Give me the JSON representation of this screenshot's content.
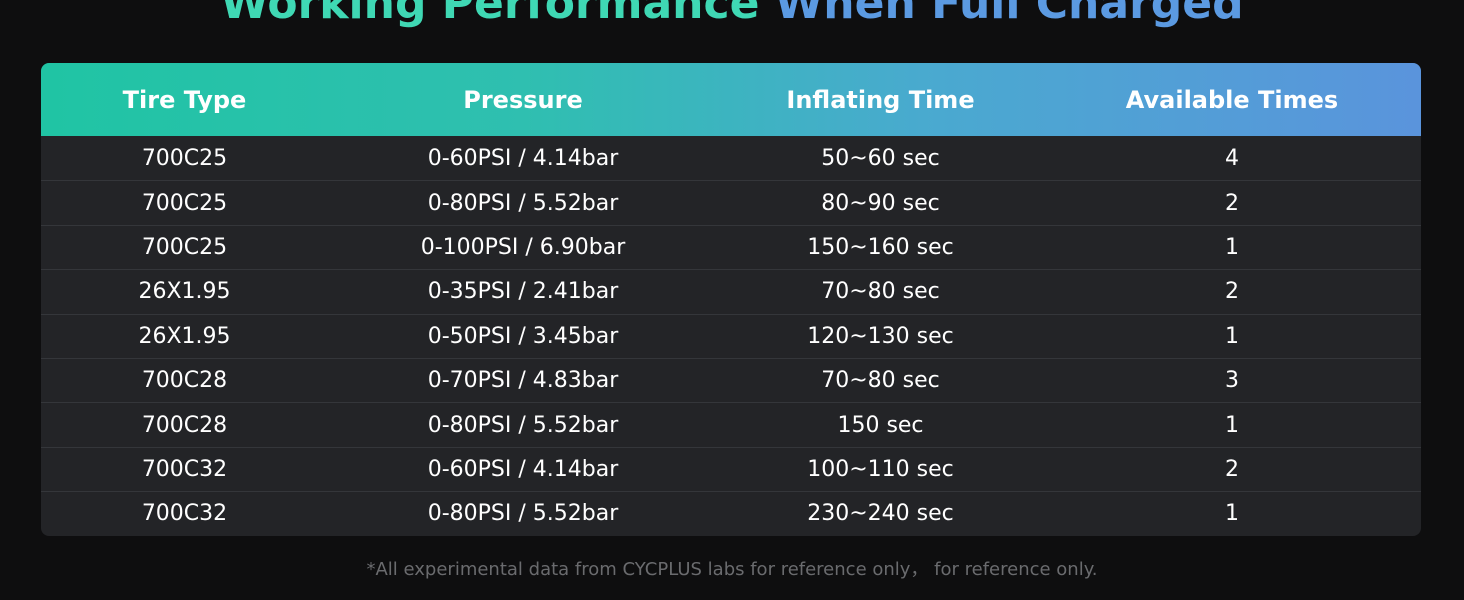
{
  "header": {
    "title_part1": "Working Performance",
    "title_part2": "When Full Charged"
  },
  "table": {
    "columns": [
      "Tire Type",
      "Pressure",
      "Inflating Time",
      "Available Times"
    ],
    "rows": [
      [
        "700C25",
        "0-60PSI / 4.14bar",
        "50~60 sec",
        4
      ],
      [
        "700C25",
        "0-80PSI / 5.52bar",
        "80~90 sec",
        2
      ],
      [
        "700C25",
        "0-100PSI / 6.90bar",
        "150~160 sec",
        1
      ],
      [
        "26X1.95",
        "0-35PSI / 2.41bar",
        "70~80 sec",
        2
      ],
      [
        "26X1.95",
        "0-50PSI / 3.45bar",
        "120~130 sec",
        1
      ],
      [
        "700C28",
        "0-70PSI / 4.83bar",
        "70~80 sec",
        3
      ],
      [
        "700C28",
        "0-80PSI / 5.52bar",
        "150 sec",
        1
      ],
      [
        "700C32",
        "0-60PSI / 4.14bar",
        "100~110 sec",
        2
      ],
      [
        "700C32",
        "0-80PSI / 5.52bar",
        "230~240 sec",
        1
      ]
    ]
  },
  "footnote": "*All experimental data from CYCPLUS labs for reference only，  for reference only."
}
